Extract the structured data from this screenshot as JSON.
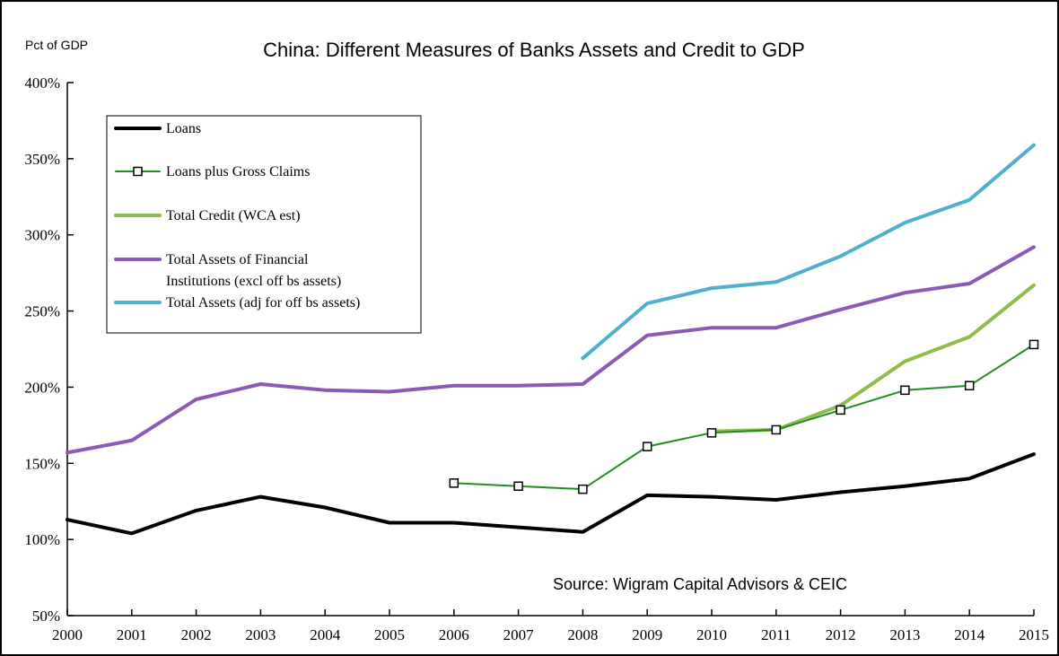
{
  "chart_data": {
    "type": "line",
    "title": "China: Different Measures of Banks Assets and Credit to GDP",
    "ylabel": "Pct of GDP",
    "xlabel": "",
    "source": "Source: Wigram Capital Advisors & CEIC",
    "x": [
      2000,
      2001,
      2002,
      2003,
      2004,
      2005,
      2006,
      2007,
      2008,
      2009,
      2010,
      2011,
      2012,
      2013,
      2014,
      2015
    ],
    "x_tick_labels": [
      "2000",
      "2001",
      "2002",
      "2003",
      "2004",
      "2005",
      "2006",
      "2007",
      "2008",
      "2009",
      "2010",
      "2011",
      "2012",
      "2013",
      "2014",
      "2015"
    ],
    "ylim": [
      50,
      400
    ],
    "y_ticks": [
      50,
      100,
      150,
      200,
      250,
      300,
      350,
      400
    ],
    "y_tick_labels": [
      "50%",
      "100%",
      "150%",
      "200%",
      "250%",
      "300%",
      "350%",
      "400%"
    ],
    "legend_position": "top-left",
    "grid": false,
    "series": [
      {
        "name": "Loans",
        "color": "#000000",
        "width": 4,
        "markers": false,
        "values": [
          113,
          104,
          119,
          128,
          121,
          111,
          111,
          108,
          105,
          129,
          128,
          126,
          131,
          135,
          140,
          156
        ]
      },
      {
        "name": "Loans plus Gross Claims",
        "color": "#228b22",
        "width": 2,
        "markers": true,
        "values": [
          null,
          null,
          null,
          null,
          null,
          null,
          137,
          135,
          133,
          161,
          170,
          172,
          185,
          198,
          201,
          228
        ]
      },
      {
        "name": "Total Credit (WCA est)",
        "color": "#8fbc4a",
        "width": 4,
        "markers": false,
        "values": [
          null,
          null,
          null,
          null,
          null,
          null,
          null,
          null,
          null,
          null,
          171,
          172,
          188,
          217,
          233,
          267
        ]
      },
      {
        "name": "Total Assets of Financial Institutions (excl off bs assets)",
        "legend_lines": [
          "Total Assets of Financial",
          "Institutions (excl off bs assets)"
        ],
        "color": "#8a5ab4",
        "width": 4,
        "markers": false,
        "values": [
          157,
          165,
          192,
          202,
          198,
          197,
          201,
          201,
          202,
          234,
          239,
          239,
          251,
          262,
          268,
          292
        ]
      },
      {
        "name": "Total Assets (adj for off bs assets)",
        "color": "#4fb0cc",
        "width": 4,
        "markers": false,
        "values": [
          null,
          null,
          null,
          null,
          null,
          null,
          null,
          null,
          219,
          255,
          265,
          269,
          286,
          308,
          323,
          359
        ]
      }
    ]
  }
}
